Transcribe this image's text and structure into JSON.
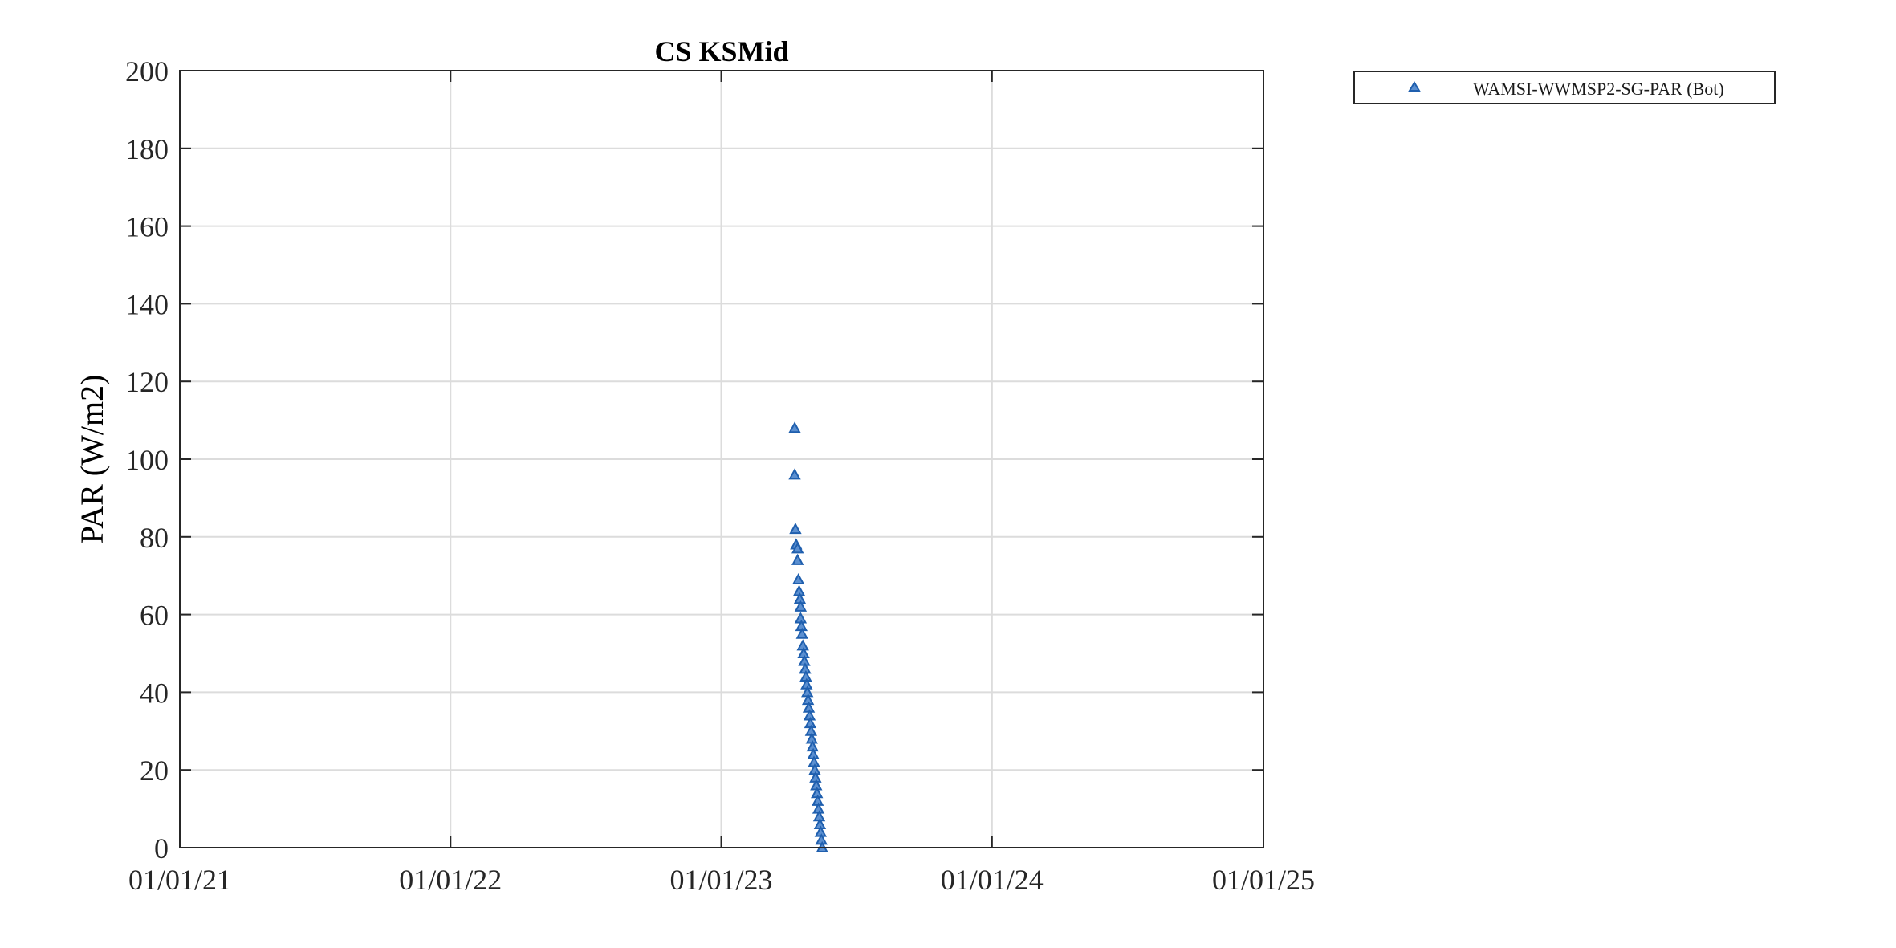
{
  "chart_data": {
    "type": "scatter",
    "title": "CS KSMid",
    "xlabel": "",
    "ylabel": "PAR (W/m2)",
    "xlim": [
      "2021-01-01",
      "2025-01-01"
    ],
    "ylim": [
      0,
      200
    ],
    "xticks": [
      "2021-01-01",
      "2022-01-01",
      "2023-01-01",
      "2024-01-01",
      "2025-01-01"
    ],
    "xtick_labels": [
      "01/01/21",
      "01/01/22",
      "01/01/23",
      "01/01/24",
      "01/01/25"
    ],
    "yticks": [
      0,
      20,
      40,
      60,
      80,
      100,
      120,
      140,
      160,
      180,
      200
    ],
    "ytick_labels": [
      "0",
      "20",
      "40",
      "60",
      "80",
      "100",
      "120",
      "140",
      "160",
      "180",
      "200"
    ],
    "grid": true,
    "legend_position": "outside-top-right",
    "series": [
      {
        "name": "WAMSI-WWMSP2-SG-PAR (Bot)",
        "marker": "triangle",
        "color": "#1f5fae",
        "x": [
          "2023-04-10",
          "2023-04-10",
          "2023-04-11",
          "2023-04-12",
          "2023-04-14",
          "2023-04-14",
          "2023-04-15",
          "2023-04-16",
          "2023-04-17",
          "2023-04-18",
          "2023-04-18",
          "2023-04-19",
          "2023-04-20",
          "2023-04-21",
          "2023-04-22",
          "2023-04-23",
          "2023-04-24",
          "2023-04-25",
          "2023-04-26",
          "2023-04-27",
          "2023-04-28",
          "2023-04-29",
          "2023-04-30",
          "2023-05-01",
          "2023-05-02",
          "2023-05-03",
          "2023-05-04",
          "2023-05-05",
          "2023-05-06",
          "2023-05-07",
          "2023-05-08",
          "2023-05-09",
          "2023-05-10",
          "2023-05-11",
          "2023-05-12",
          "2023-05-13",
          "2023-05-14",
          "2023-05-15",
          "2023-05-16",
          "2023-05-17"
        ],
        "y": [
          108,
          96,
          82,
          78,
          77,
          74,
          69,
          66,
          64,
          62,
          59,
          57,
          55,
          52,
          50,
          48,
          46,
          44,
          42,
          40,
          38,
          36,
          34,
          32,
          30,
          28,
          26,
          24,
          22,
          20,
          18,
          16,
          14,
          12,
          10,
          8,
          6,
          4,
          2,
          0
        ]
      }
    ]
  }
}
